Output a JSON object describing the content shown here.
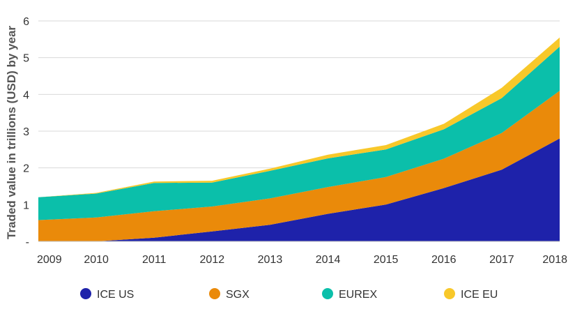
{
  "chart_data": {
    "type": "area",
    "stacked": true,
    "title": "",
    "xlabel": "",
    "ylabel": "Traded value in trillions (USD) by year",
    "ylim": [
      0,
      6
    ],
    "y_ticks": [
      "-",
      "1",
      "2",
      "3",
      "4",
      "5",
      "6"
    ],
    "categories": [
      "2009",
      "2010",
      "2011",
      "2012",
      "2013",
      "2014",
      "2015",
      "2016",
      "2017",
      "2018"
    ],
    "grid": true,
    "legend_position": "bottom",
    "series": [
      {
        "name": "ICE US",
        "color": "#1e22aa",
        "values": [
          0.0,
          0.0,
          0.1,
          0.27,
          0.45,
          0.75,
          1.0,
          1.45,
          1.95,
          2.8
        ]
      },
      {
        "name": "SGX",
        "color": "#ea8a0a",
        "values": [
          0.58,
          0.65,
          0.72,
          0.68,
          0.72,
          0.73,
          0.75,
          0.8,
          1.0,
          1.3
        ]
      },
      {
        "name": "EUREX",
        "color": "#0bbfaa",
        "values": [
          0.62,
          0.65,
          0.77,
          0.65,
          0.75,
          0.78,
          0.75,
          0.8,
          0.95,
          1.2
        ]
      },
      {
        "name": "ICE EU",
        "color": "#f8c82a",
        "values": [
          0.0,
          0.02,
          0.04,
          0.05,
          0.06,
          0.1,
          0.12,
          0.15,
          0.28,
          0.25
        ]
      }
    ]
  }
}
